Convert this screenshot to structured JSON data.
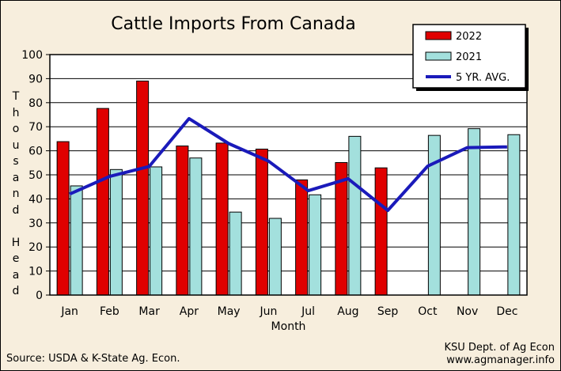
{
  "chart_data": {
    "type": "bar",
    "title": "Cattle Imports From Canada",
    "xlabel": "Month",
    "ylabel": "Thousand Head",
    "ylabel_chars": [
      "T",
      "h",
      "o",
      "u",
      "s",
      "a",
      "n",
      "d",
      "",
      "H",
      "e",
      "a",
      "d"
    ],
    "ylim": [
      0,
      100
    ],
    "yticks": [
      0,
      10,
      20,
      30,
      40,
      50,
      60,
      70,
      80,
      90,
      100
    ],
    "grid": true,
    "legend_position": "top-right",
    "categories": [
      "Jan",
      "Feb",
      "Mar",
      "Apr",
      "May",
      "Jun",
      "Jul",
      "Aug",
      "Sep",
      "Oct",
      "Nov",
      "Dec"
    ],
    "series": [
      {
        "name": "2022",
        "type": "bar",
        "color": "#e00000",
        "values": [
          63.8,
          77.6,
          89.0,
          62.0,
          63.2,
          60.7,
          47.9,
          55.1,
          52.9,
          null,
          null,
          null
        ]
      },
      {
        "name": "2021",
        "type": "bar",
        "color": "#a3e0dd",
        "values": [
          45.4,
          52.2,
          53.3,
          57.0,
          34.5,
          31.9,
          41.7,
          66.0,
          null,
          66.4,
          69.2,
          66.7
        ]
      },
      {
        "name": "5 YR. AVG.",
        "type": "line",
        "color": "#1a1aba",
        "values": [
          42.0,
          49.3,
          53.5,
          73.4,
          63.0,
          55.7,
          43.4,
          48.4,
          35.2,
          53.6,
          61.3,
          61.6
        ]
      }
    ]
  },
  "footer": {
    "source": "Source:  USDA & K-State Ag. Econ.",
    "credit_line1": "KSU Dept. of Ag Econ",
    "credit_line2": "www.agmanager.info"
  }
}
